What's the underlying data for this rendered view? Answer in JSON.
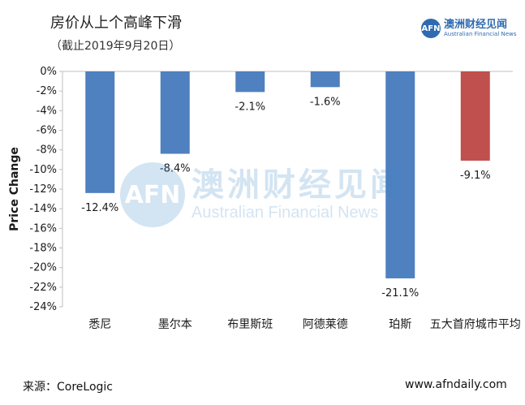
{
  "header": {
    "title": "房价从上个高峰下滑",
    "subtitle": "（截止2019年9月20日）"
  },
  "brand": {
    "logo_text": "AFN",
    "name_cn": "澳洲财经见闻",
    "name_en": "Australian Financial News"
  },
  "watermark": {
    "logo_text": "AFN",
    "name_cn": "澳洲财经见闻",
    "name_en": "Australian Financial News"
  },
  "footer": {
    "source": "来源：CoreLogic",
    "site": "www.afndaily.com"
  },
  "colors": {
    "bar": "#4f80c0",
    "average": "#c0504d",
    "axis": "#bfbfbf"
  },
  "chart_data": {
    "type": "bar",
    "ylabel": "Price Change",
    "ylim": [
      -24,
      0
    ],
    "yticks": [
      "0%",
      "-2%",
      "-4%",
      "-6%",
      "-8%",
      "-10%",
      "-12%",
      "-14%",
      "-16%",
      "-18%",
      "-20%",
      "-22%",
      "-24%"
    ],
    "categories": [
      "悉尼",
      "墨尔本",
      "布里斯班",
      "阿德莱德",
      "珀斯",
      "五大首府城市平均"
    ],
    "values": [
      -12.4,
      -8.4,
      -2.1,
      -1.6,
      -21.1,
      -9.1
    ],
    "data_labels": [
      "-12.4%",
      "-8.4%",
      "-2.1%",
      "-1.6%",
      "-21.1%",
      "-9.1%"
    ],
    "grid": false,
    "legend": "none"
  }
}
